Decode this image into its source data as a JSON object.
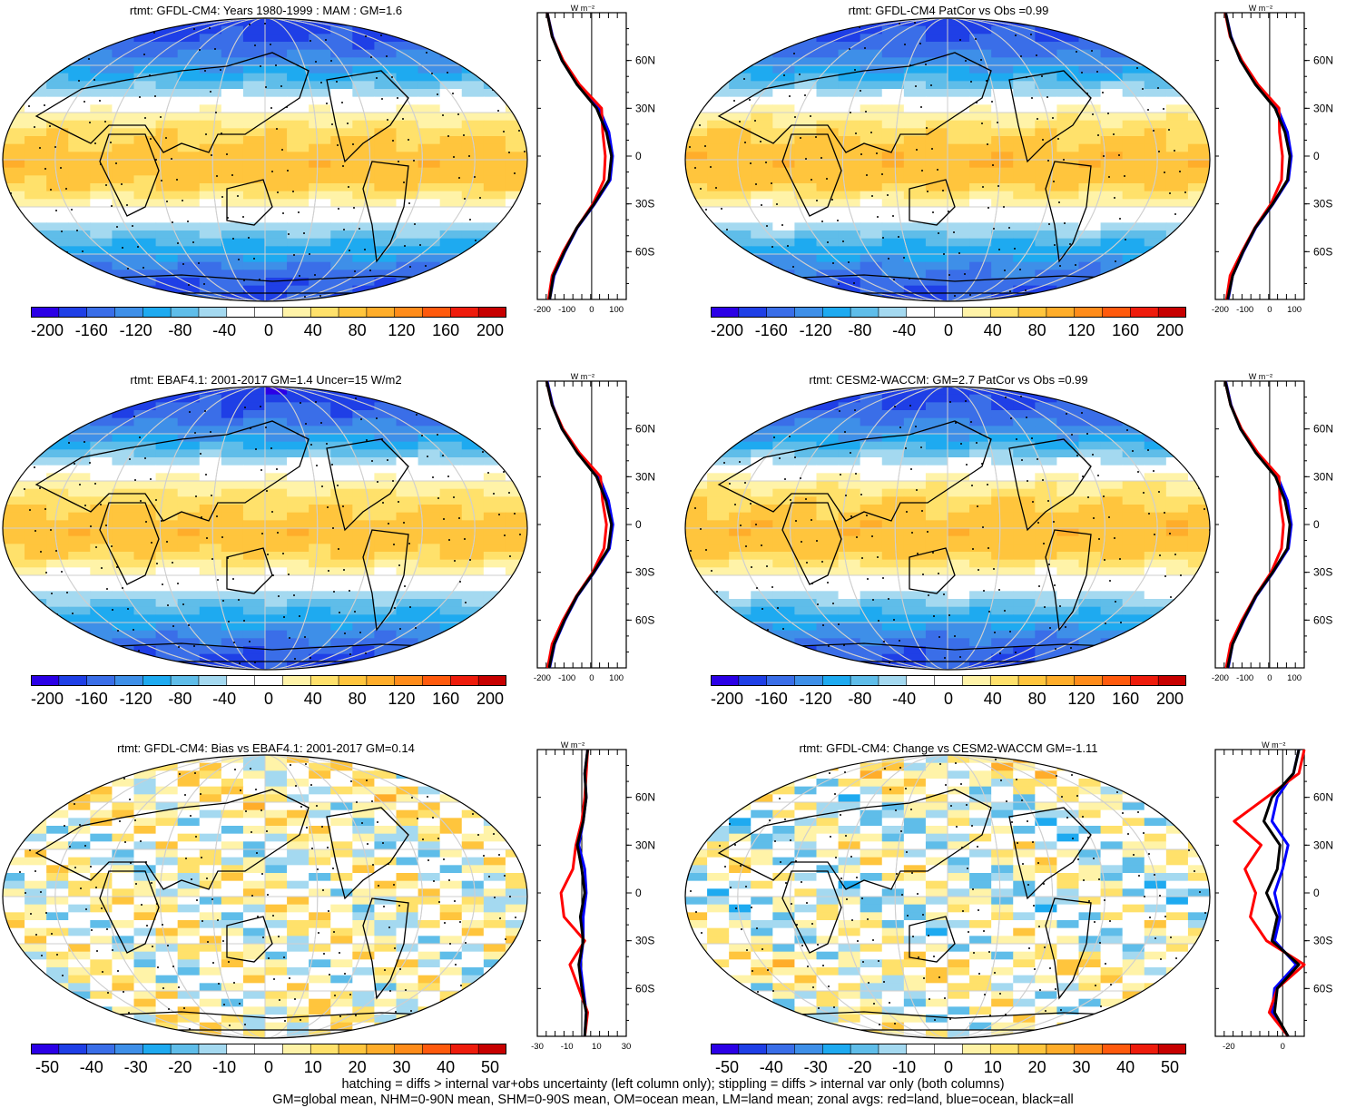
{
  "panels": [
    {
      "title": "rtmt: GFDL-CM4: Years 1980-1999 : MAM : GM=1.6",
      "colorbar": [
        "-200",
        "-160",
        "-120",
        "-80",
        "-40",
        "0",
        "40",
        "80",
        "120",
        "160",
        "200"
      ],
      "zonal": {
        "unit": "W m⁻²",
        "xticks": [
          "-200",
          "-100",
          "0",
          "100"
        ],
        "lat_ticks": [
          "60N",
          "30N",
          "0",
          "30S",
          "60S"
        ]
      }
    },
    {
      "title": "rtmt: GFDL-CM4 PatCor vs Obs =0.99",
      "colorbar": [
        "-200",
        "-160",
        "-120",
        "-80",
        "-40",
        "0",
        "40",
        "80",
        "120",
        "160",
        "200"
      ],
      "zonal": {
        "unit": "W m⁻²",
        "xticks": [
          "-200",
          "-100",
          "0",
          "100"
        ],
        "lat_ticks": [
          "60N",
          "30N",
          "0",
          "30S",
          "60S"
        ]
      }
    },
    {
      "title": "rtmt: EBAF4.1: 2001-2017 GM=1.4 Uncer=15 W/m2",
      "colorbar": [
        "-200",
        "-160",
        "-120",
        "-80",
        "-40",
        "0",
        "40",
        "80",
        "120",
        "160",
        "200"
      ],
      "zonal": {
        "unit": "W m⁻²",
        "xticks": [
          "-200",
          "-100",
          "0",
          "100"
        ],
        "lat_ticks": [
          "60N",
          "30N",
          "0",
          "30S",
          "60S"
        ]
      }
    },
    {
      "title": "rtmt: CESM2-WACCM: GM=2.7 PatCor vs Obs =0.99",
      "colorbar": [
        "-200",
        "-160",
        "-120",
        "-80",
        "-40",
        "0",
        "40",
        "80",
        "120",
        "160",
        "200"
      ],
      "zonal": {
        "unit": "W m⁻²",
        "xticks": [
          "-200",
          "-100",
          "0",
          "100"
        ],
        "lat_ticks": [
          "60N",
          "30N",
          "0",
          "30S",
          "60S"
        ]
      }
    },
    {
      "title": "rtmt: GFDL-CM4: Bias vs EBAF4.1: 2001-2017 GM=0.14",
      "colorbar": [
        "-50",
        "-40",
        "-30",
        "-20",
        "-10",
        "0",
        "10",
        "20",
        "30",
        "40",
        "50"
      ],
      "zonal": {
        "unit": "W m⁻²",
        "xticks": [
          "-30",
          "-10",
          "10",
          "30"
        ],
        "lat_ticks": [
          "60N",
          "30N",
          "0",
          "30S",
          "60S"
        ]
      }
    },
    {
      "title": "rtmt: GFDL-CM4: Change vs CESM2-WACCM GM=-1.11",
      "colorbar": [
        "-50",
        "-40",
        "-30",
        "-20",
        "-10",
        "0",
        "10",
        "20",
        "30",
        "40",
        "50"
      ],
      "zonal": {
        "unit": "W m⁻²",
        "xticks": [
          "-20",
          "0"
        ],
        "lat_ticks": [
          "60N",
          "30N",
          "0",
          "30S",
          "60S"
        ]
      }
    }
  ],
  "footer": {
    "line1": "hatching = diffs > internal var+obs uncertainty (left column only); stippling = diffs > internal var only (both columns)",
    "line2": "GM=global mean, NHM=0-90N mean, SHM=0-90S mean, OM=ocean mean, LM=land mean; zonal avgs: red=land, blue=ocean, black=all"
  },
  "colors": {
    "palette": [
      "#2b00e6",
      "#1f3fe6",
      "#3a6ee8",
      "#3e8fe8",
      "#1eaaf0",
      "#5fbde9",
      "#a4d9f0",
      "#ffffff",
      "#ffffff",
      "#fff3a8",
      "#ffe16b",
      "#ffc53d",
      "#ffad2a",
      "#ff8c1a",
      "#ff5a0d",
      "#ee1c0c",
      "#c70000"
    ],
    "land": "#ff0000",
    "ocean": "#0000ff",
    "all": "#000000"
  },
  "chart_data": [
    {
      "type": "heatmap",
      "title": "rtmt: GFDL-CM4: Years 1980-1999 : MAM : GM=1.6",
      "colorbar_range": [
        -200,
        200
      ],
      "zonal_mean": {
        "lat": [
          -90,
          -75,
          -60,
          -45,
          -30,
          -15,
          0,
          15,
          30,
          45,
          60,
          75,
          90
        ],
        "all": [
          -170,
          -155,
          -110,
          -60,
          10,
          70,
          80,
          60,
          20,
          -60,
          -120,
          -160,
          -180
        ],
        "land": [
          -175,
          -160,
          -115,
          -60,
          5,
          50,
          55,
          45,
          40,
          -50,
          -115,
          -160,
          -180
        ],
        "ocean": [
          -170,
          -152,
          -108,
          -58,
          12,
          75,
          85,
          70,
          30,
          -55,
          -120,
          -158,
          -180
        ]
      }
    },
    {
      "type": "heatmap",
      "title": "rtmt: GFDL-CM4 PatCor vs Obs =0.99",
      "colorbar_range": [
        -200,
        200
      ],
      "zonal_mean": {
        "lat": [
          -90,
          -75,
          -60,
          -45,
          -30,
          -15,
          0,
          15,
          30,
          45,
          60,
          75,
          90
        ],
        "all": [
          -170,
          -150,
          -108,
          -58,
          12,
          72,
          82,
          62,
          22,
          -58,
          -118,
          -158,
          -178
        ],
        "land": [
          -175,
          -160,
          -112,
          -60,
          5,
          48,
          52,
          40,
          38,
          -48,
          -112,
          -160,
          -180
        ],
        "ocean": [
          -168,
          -150,
          -106,
          -56,
          14,
          76,
          88,
          72,
          32,
          -52,
          -118,
          -156,
          -178
        ]
      }
    },
    {
      "type": "heatmap",
      "title": "rtmt: EBAF4.1: 2001-2017 GM=1.4 Uncer=15 W/m2",
      "colorbar_range": [
        -200,
        200
      ],
      "zonal_mean": {
        "lat": [
          -90,
          -75,
          -60,
          -45,
          -30,
          -15,
          0,
          15,
          30,
          45,
          60,
          75,
          90
        ],
        "all": [
          -172,
          -152,
          -110,
          -60,
          8,
          68,
          80,
          58,
          20,
          -58,
          -120,
          -160,
          -182
        ],
        "land": [
          -178,
          -160,
          -116,
          -62,
          4,
          50,
          60,
          44,
          36,
          -50,
          -116,
          -160,
          -182
        ],
        "ocean": [
          -170,
          -150,
          -108,
          -58,
          10,
          72,
          86,
          68,
          30,
          -54,
          -120,
          -158,
          -180
        ]
      }
    },
    {
      "type": "heatmap",
      "title": "rtmt: CESM2-WACCM: GM=2.7 PatCor vs Obs =0.99",
      "colorbar_range": [
        -200,
        200
      ],
      "zonal_mean": {
        "lat": [
          -90,
          -75,
          -60,
          -45,
          -30,
          -15,
          0,
          15,
          30,
          45,
          60,
          75,
          90
        ],
        "all": [
          -170,
          -150,
          -106,
          -56,
          12,
          72,
          82,
          62,
          24,
          -56,
          -118,
          -158,
          -180
        ],
        "land": [
          -176,
          -158,
          -112,
          -58,
          6,
          48,
          56,
          42,
          38,
          -48,
          -114,
          -158,
          -180
        ],
        "ocean": [
          -168,
          -150,
          -104,
          -54,
          14,
          76,
          88,
          72,
          32,
          -52,
          -118,
          -156,
          -178
        ]
      }
    },
    {
      "type": "heatmap",
      "title": "rtmt: GFDL-CM4: Bias vs EBAF4.1: 2001-2017 GM=0.14",
      "colorbar_range": [
        -50,
        50
      ],
      "zonal_mean": {
        "lat": [
          -90,
          -75,
          -60,
          -45,
          -30,
          -15,
          0,
          15,
          30,
          45,
          60,
          75,
          90
        ],
        "all": [
          2,
          3,
          0,
          -2,
          1,
          -1,
          2,
          0,
          -3,
          1,
          3,
          2,
          4
        ],
        "land": [
          2,
          4,
          -2,
          -8,
          2,
          -12,
          -14,
          -6,
          -4,
          0,
          2,
          3,
          4
        ],
        "ocean": [
          2,
          3,
          1,
          -1,
          1,
          1,
          3,
          2,
          -2,
          1,
          3,
          2,
          4
        ]
      }
    },
    {
      "type": "heatmap",
      "title": "rtmt: GFDL-CM4: Change vs CESM2-WACCM GM=-1.11",
      "colorbar_range": [
        -50,
        50
      ],
      "zonal_mean": {
        "lat": [
          -90,
          -75,
          -60,
          -45,
          -30,
          -15,
          0,
          15,
          30,
          45,
          60,
          75,
          90
        ],
        "all": [
          2,
          -3,
          -2,
          6,
          -4,
          -2,
          -6,
          -2,
          -1,
          -7,
          -4,
          4,
          6
        ],
        "land": [
          2,
          -5,
          -2,
          8,
          -6,
          -12,
          -10,
          -14,
          -8,
          -18,
          -6,
          6,
          8
        ],
        "ocean": [
          2,
          -4,
          -3,
          5,
          -3,
          -1,
          -3,
          0,
          2,
          -4,
          -2,
          4,
          6
        ]
      }
    }
  ]
}
